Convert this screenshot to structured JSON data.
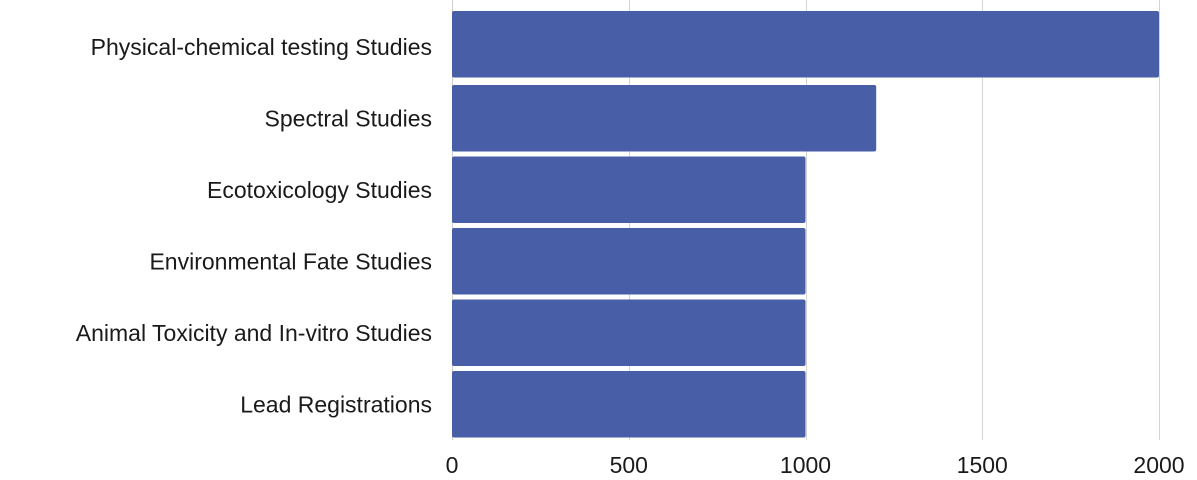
{
  "chart_data": {
    "type": "bar",
    "orientation": "horizontal",
    "title": "",
    "xlabel": "",
    "ylabel": "",
    "categories": [
      "Physical-chemical testing Studies",
      "Spectral Studies",
      "Ecotoxicology Studies",
      "Environmental Fate Studies",
      "Animal Toxicity and In-vitro Studies",
      "Lead Registrations"
    ],
    "values": [
      2000,
      1200,
      1000,
      1000,
      1000,
      1000
    ],
    "xlim": [
      0,
      2000
    ],
    "xticks": [
      0,
      500,
      1000,
      1500,
      2000
    ],
    "xtick_labels": [
      "0",
      "500",
      "1000",
      "1500",
      "2000"
    ],
    "grid": "vertical",
    "legend": "none",
    "bar_color": "#485ea7",
    "grid_color": "#d4d4d4"
  }
}
